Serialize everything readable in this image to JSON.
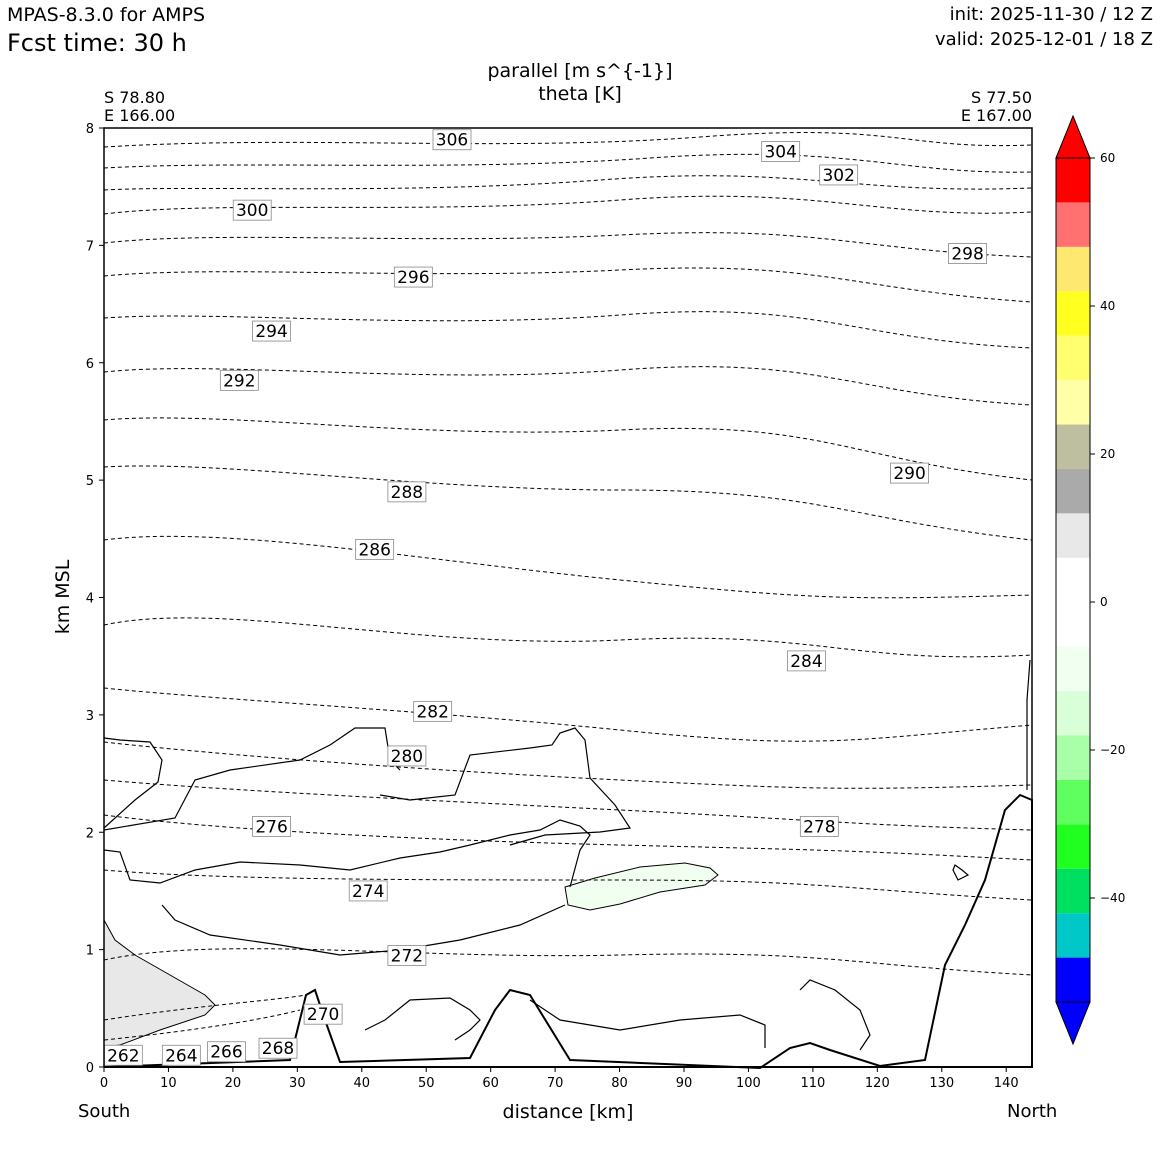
{
  "header": {
    "model": "MPAS-8.3.0 for AMPS",
    "fcst": "Fcst time:   30 h",
    "init": "init: 2025-11-30 / 12 Z",
    "valid": "valid: 2025-12-01 / 18 Z"
  },
  "chart_data": {
    "type": "contour",
    "title": "parallel [m s^{-1}]",
    "subtitle": "theta [K]",
    "xlabel": "distance [km]",
    "ylabel": "km MSL",
    "xlim": [
      0,
      144
    ],
    "ylim": [
      0,
      8
    ],
    "x_ticks": [
      0,
      10,
      20,
      30,
      40,
      50,
      60,
      70,
      80,
      90,
      100,
      110,
      120,
      130,
      140
    ],
    "y_ticks": [
      0,
      1,
      2,
      3,
      4,
      5,
      6,
      7,
      8
    ],
    "grid": false,
    "left_endpoint": [
      "S 78.80",
      "E 166.00"
    ],
    "right_endpoint": [
      "S 77.50",
      "E 167.00"
    ],
    "left_direction": "South",
    "right_direction": "North",
    "colorbar": {
      "ticks": [
        60,
        40,
        20,
        0,
        -20,
        -40
      ],
      "tick_labels": [
        "60",
        "40",
        "20",
        "0",
        "−20",
        "−40"
      ],
      "colors": [
        "#0000ff",
        "#00c8c8",
        "#00e060",
        "#20ff20",
        "#60ff60",
        "#a8ffa8",
        "#d8ffd8",
        "#f0fff0",
        "#ffffff",
        "#ffffff",
        "#e8e8e8",
        "#aaaaaa",
        "#bebea0",
        "#ffffa8",
        "#ffff70",
        "#ffff20",
        "#ffe870",
        "#ff7070",
        "#ff0000"
      ]
    },
    "theta_isentropes": [
      {
        "label": "262",
        "at": [
          3,
          0.1
        ]
      },
      {
        "label": "264",
        "at": [
          12,
          0.1
        ]
      },
      {
        "label": "266",
        "at": [
          19,
          0.13
        ]
      },
      {
        "label": "268",
        "at": [
          27,
          0.16
        ]
      },
      {
        "label": "270",
        "at": [
          34,
          0.45
        ]
      },
      {
        "label": "272",
        "at": [
          47,
          0.95
        ]
      },
      {
        "label": "274",
        "at": [
          41,
          1.5
        ]
      },
      {
        "label": "276",
        "at": [
          26,
          2.05
        ]
      },
      {
        "label": "278",
        "at": [
          111,
          2.05
        ]
      },
      {
        "label": "280",
        "at": [
          47,
          2.65
        ]
      },
      {
        "label": "282",
        "at": [
          51,
          3.03
        ]
      },
      {
        "label": "284",
        "at": [
          109,
          3.46
        ]
      },
      {
        "label": "286",
        "at": [
          42,
          4.41
        ]
      },
      {
        "label": "288",
        "at": [
          47,
          4.9
        ]
      },
      {
        "label": "290",
        "at": [
          125,
          5.06
        ]
      },
      {
        "label": "292",
        "at": [
          21,
          5.85
        ]
      },
      {
        "label": "294",
        "at": [
          26,
          6.27
        ]
      },
      {
        "label": "296",
        "at": [
          48,
          6.73
        ]
      },
      {
        "label": "298",
        "at": [
          134,
          6.93
        ]
      },
      {
        "label": "300",
        "at": [
          23,
          7.3
        ]
      },
      {
        "label": "302",
        "at": [
          114,
          7.6
        ]
      },
      {
        "label": "304",
        "at": [
          105,
          7.8
        ]
      },
      {
        "label": "306",
        "at": [
          54,
          7.9
        ]
      }
    ]
  }
}
